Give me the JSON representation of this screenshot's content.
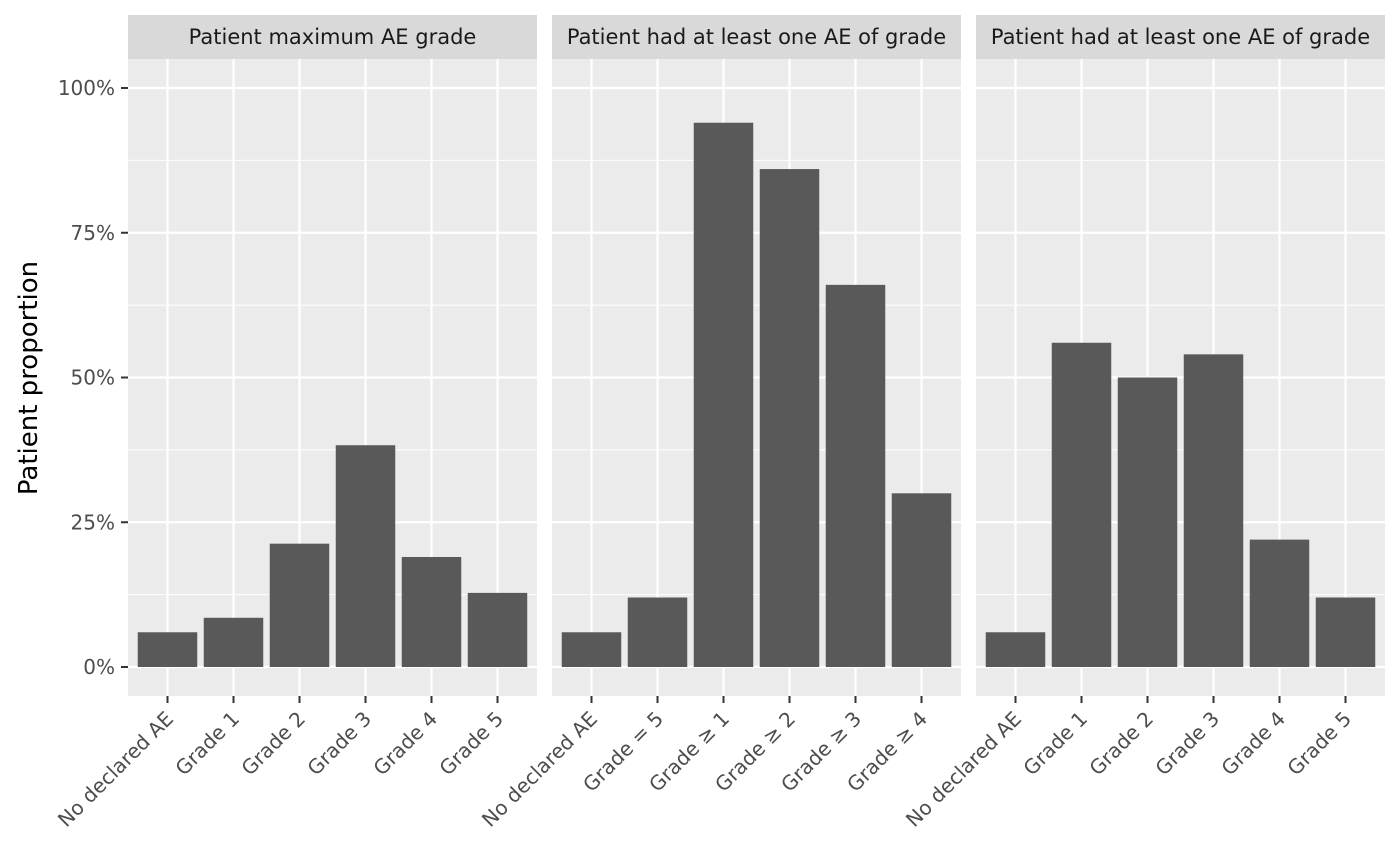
{
  "chart_data": {
    "type": "bar",
    "ylabel": "Patient proportion",
    "ylim": [
      0,
      1.05
    ],
    "yticks": [
      0,
      0.25,
      0.5,
      0.75,
      1.0
    ],
    "ytick_labels": [
      "0%",
      "25%",
      "50%",
      "75%",
      "100%"
    ],
    "grid": true,
    "panels": [
      {
        "title": "Patient maximum AE grade",
        "categories": [
          "No declared AE",
          "Grade 1",
          "Grade 2",
          "Grade 3",
          "Grade 4",
          "Grade 5"
        ],
        "values": [
          0.06,
          0.085,
          0.213,
          0.383,
          0.19,
          0.128
        ]
      },
      {
        "title": "Patient had at least one AE of grade",
        "categories": [
          "No declared AE",
          "Grade = 5",
          "Grade ≥ 1",
          "Grade ≥ 2",
          "Grade ≥ 3",
          "Grade ≥ 4"
        ],
        "values": [
          0.06,
          0.12,
          0.94,
          0.86,
          0.66,
          0.3
        ]
      },
      {
        "title": "Patient had at least one AE of grade",
        "categories": [
          "No declared AE",
          "Grade 1",
          "Grade 2",
          "Grade 3",
          "Grade 4",
          "Grade 5"
        ],
        "values": [
          0.06,
          0.56,
          0.5,
          0.54,
          0.22,
          0.12
        ]
      }
    ]
  }
}
